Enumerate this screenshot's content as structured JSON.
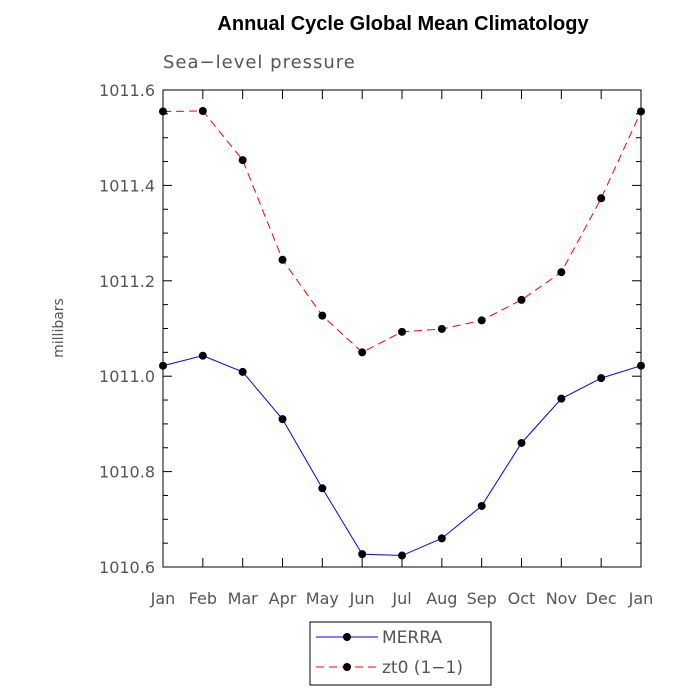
{
  "chart_data": {
    "type": "line",
    "title": "Annual Cycle Global Mean Climatology",
    "subtitle": "Sea−level pressure",
    "xlabel": "",
    "ylabel": "millibars",
    "categories": [
      "Jan",
      "Feb",
      "Mar",
      "Apr",
      "May",
      "Jun",
      "Jul",
      "Aug",
      "Sep",
      "Oct",
      "Nov",
      "Dec",
      "Jan"
    ],
    "ylim": [
      1010.6,
      1011.6
    ],
    "yticks": [
      "1010.6",
      "1010.8",
      "1011.0",
      "1011.2",
      "1011.4",
      "1011.6"
    ],
    "legend_position": "bottom",
    "series": [
      {
        "name": "MERRA",
        "color": "#0000ff",
        "style": "solid",
        "values": [
          1011.022,
          1011.043,
          1011.009,
          1010.91,
          1010.765,
          1010.627,
          1010.624,
          1010.66,
          1010.728,
          1010.86,
          1010.953,
          1010.996,
          1011.022
        ]
      },
      {
        "name": "zt0 (1−1)",
        "color": "#ff0000",
        "style": "dashed",
        "values": [
          1011.555,
          1011.556,
          1011.453,
          1011.244,
          1011.127,
          1011.05,
          1011.093,
          1011.099,
          1011.117,
          1011.16,
          1011.218,
          1011.373,
          1011.555
        ]
      }
    ]
  }
}
